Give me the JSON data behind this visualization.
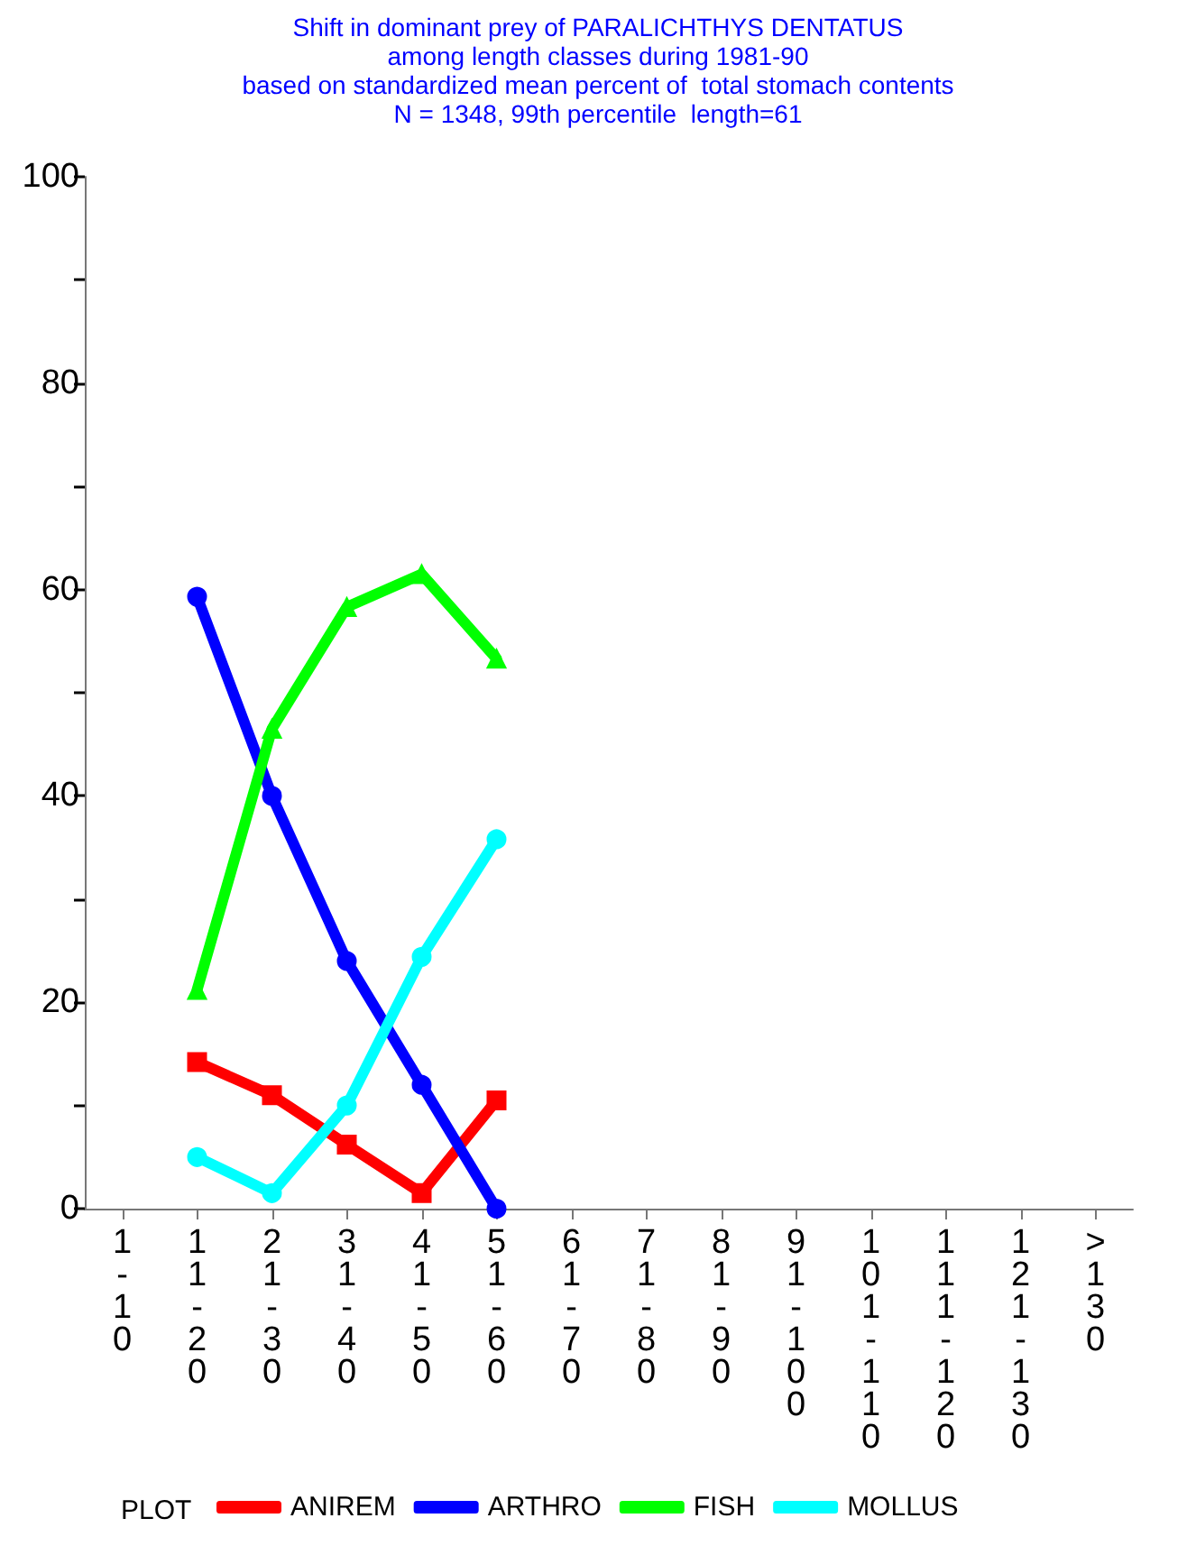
{
  "chart_data": {
    "type": "line",
    "title": "Shift in dominant prey of PARALICHTHYS DENTATUS\namong length classes during 1981-90\nbased on standardized mean percent of  total stomach contents\nN = 1348, 99th percentile  length=61",
    "categories": [
      "1-10",
      "11-20",
      "21-30",
      "31-40",
      "41-50",
      "51-60",
      "61-70",
      "71-80",
      "81-90",
      "91-100",
      "101-110",
      "111-120",
      "121-130",
      ">130"
    ],
    "series": [
      {
        "name": "ANIREM",
        "color": "#ff0000",
        "marker": "square",
        "values": [
          null,
          14.2,
          11,
          6.2,
          1.5,
          10.5,
          null,
          null,
          null,
          null,
          null,
          null,
          null,
          null
        ]
      },
      {
        "name": "ARTHRO",
        "color": "#0000ff",
        "marker": "circle",
        "values": [
          null,
          59.3,
          40,
          24,
          12,
          0,
          null,
          null,
          null,
          null,
          null,
          null,
          null,
          null
        ]
      },
      {
        "name": "FISH",
        "color": "#00ff00",
        "marker": "triangle",
        "values": [
          null,
          21.2,
          46.5,
          58.3,
          61.5,
          53.3,
          null,
          null,
          null,
          null,
          null,
          null,
          null,
          null
        ]
      },
      {
        "name": "MOLLUS",
        "color": "#00ffff",
        "marker": "circle",
        "values": [
          null,
          5,
          1.5,
          10,
          24.4,
          35.8,
          null,
          null,
          null,
          null,
          null,
          null,
          null,
          null
        ]
      }
    ],
    "ylim": [
      0,
      100
    ],
    "yticks": [
      0,
      {
        "value": 10,
        "label": null
      },
      20,
      {
        "value": 30,
        "label": null
      },
      40,
      {
        "value": 50,
        "label": null
      },
      60,
      {
        "value": 70,
        "label": null
      },
      80,
      {
        "value": 90,
        "label": null
      },
      100
    ],
    "grid": false,
    "legend": "bottom",
    "legend_title": "PLOT",
    "line_style": "solid"
  }
}
